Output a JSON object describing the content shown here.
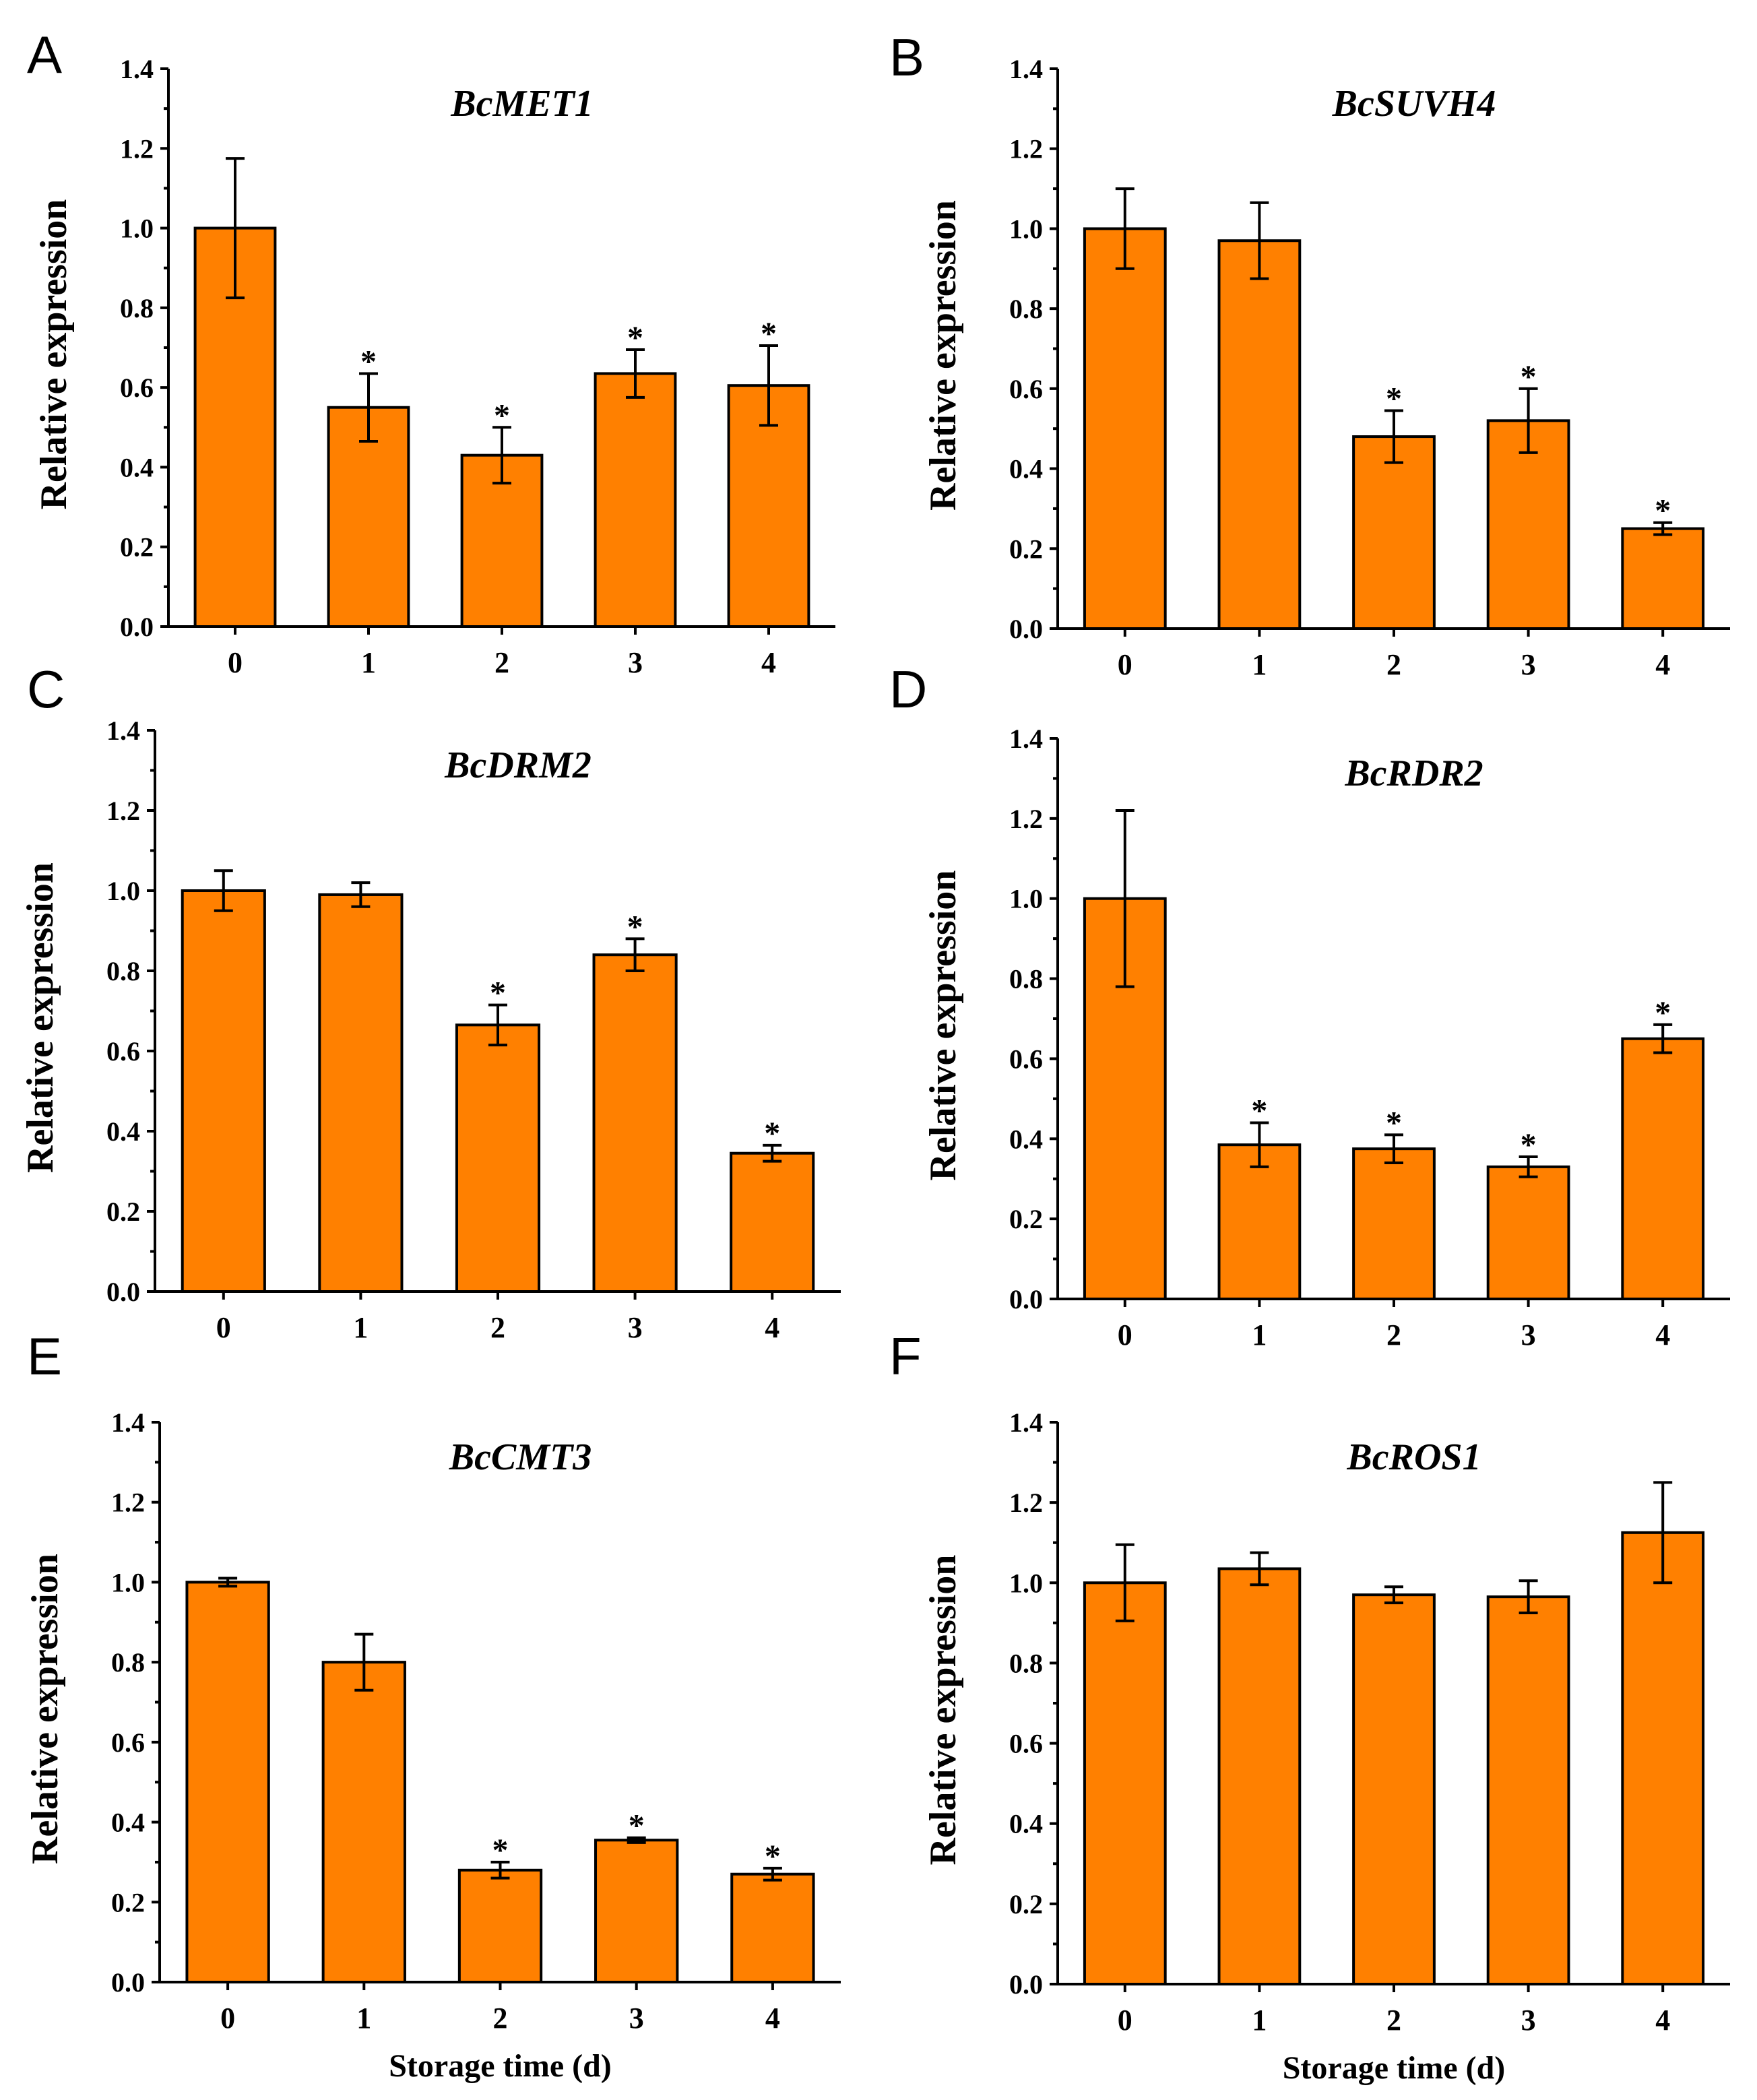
{
  "chart_data": [
    {
      "type": "bar",
      "panel": "A",
      "title": "BcMET1",
      "ylabel": "Relative expression",
      "xlabel": "",
      "categories": [
        "0",
        "1",
        "2",
        "3",
        "4"
      ],
      "values": [
        1.0,
        0.55,
        0.43,
        0.635,
        0.605
      ],
      "errors": [
        0.175,
        0.085,
        0.07,
        0.06,
        0.1
      ],
      "significance": [
        "",
        "*",
        "*",
        "*",
        "*"
      ],
      "ylim": [
        0,
        1.4
      ],
      "yticks": [
        "0.0",
        "0.2",
        "0.4",
        "0.6",
        "0.8",
        "1.0",
        "1.2",
        "1.4"
      ]
    },
    {
      "type": "bar",
      "panel": "B",
      "title": "BcSUVH4",
      "ylabel": "Relative expression",
      "xlabel": "",
      "categories": [
        "0",
        "1",
        "2",
        "3",
        "4"
      ],
      "values": [
        1.0,
        0.97,
        0.48,
        0.52,
        0.25
      ],
      "errors": [
        0.1,
        0.095,
        0.065,
        0.08,
        0.015
      ],
      "significance": [
        "",
        "",
        "*",
        "*",
        "*"
      ],
      "ylim": [
        0,
        1.4
      ],
      "yticks": [
        "0.0",
        "0.2",
        "0.4",
        "0.6",
        "0.8",
        "1.0",
        "1.2",
        "1.4"
      ]
    },
    {
      "type": "bar",
      "panel": "C",
      "title": "BcDRM2",
      "ylabel": "Relative expression",
      "xlabel": "",
      "categories": [
        "0",
        "1",
        "2",
        "3",
        "4"
      ],
      "values": [
        1.0,
        0.99,
        0.665,
        0.84,
        0.345
      ],
      "errors": [
        0.05,
        0.03,
        0.05,
        0.04,
        0.02
      ],
      "significance": [
        "",
        "",
        "*",
        "*",
        "*"
      ],
      "ylim": [
        0,
        1.4
      ],
      "yticks": [
        "0.0",
        "0.2",
        "0.4",
        "0.6",
        "0.8",
        "1.0",
        "1.2",
        "1.4"
      ]
    },
    {
      "type": "bar",
      "panel": "D",
      "title": "BcRDR2",
      "ylabel": "Relative expression",
      "xlabel": "",
      "categories": [
        "0",
        "1",
        "2",
        "3",
        "4"
      ],
      "values": [
        1.0,
        0.385,
        0.375,
        0.33,
        0.65
      ],
      "errors": [
        0.22,
        0.055,
        0.035,
        0.025,
        0.035
      ],
      "significance": [
        "",
        "*",
        "*",
        "*",
        "*"
      ],
      "ylim": [
        0,
        1.4
      ],
      "yticks": [
        "0.0",
        "0.2",
        "0.4",
        "0.6",
        "0.8",
        "1.0",
        "1.2",
        "1.4"
      ]
    },
    {
      "type": "bar",
      "panel": "E",
      "title": "BcCMT3",
      "ylabel": "Relative expression",
      "xlabel": "Storage time (d)",
      "categories": [
        "0",
        "1",
        "2",
        "3",
        "4"
      ],
      "values": [
        1.0,
        0.8,
        0.28,
        0.355,
        0.27
      ],
      "errors": [
        0.01,
        0.07,
        0.02,
        0.006,
        0.015
      ],
      "significance": [
        "",
        "",
        "*",
        "*",
        "*"
      ],
      "ylim": [
        0,
        1.4
      ],
      "yticks": [
        "0.0",
        "0.2",
        "0.4",
        "0.6",
        "0.8",
        "1.0",
        "1.2",
        "1.4"
      ]
    },
    {
      "type": "bar",
      "panel": "F",
      "title": "BcROS1",
      "ylabel": "Relative expression",
      "xlabel": "Storage time (d)",
      "categories": [
        "0",
        "1",
        "2",
        "3",
        "4"
      ],
      "values": [
        1.0,
        1.035,
        0.97,
        0.965,
        1.125
      ],
      "errors": [
        0.095,
        0.04,
        0.02,
        0.04,
        0.125
      ],
      "significance": [
        "",
        "",
        "",
        "",
        ""
      ],
      "ylim": [
        0,
        1.4
      ],
      "yticks": [
        "0.0",
        "0.2",
        "0.4",
        "0.6",
        "0.8",
        "1.0",
        "1.2",
        "1.4"
      ]
    }
  ],
  "colors": {
    "bar_fill": "#ff8000",
    "stroke": "#000000"
  }
}
